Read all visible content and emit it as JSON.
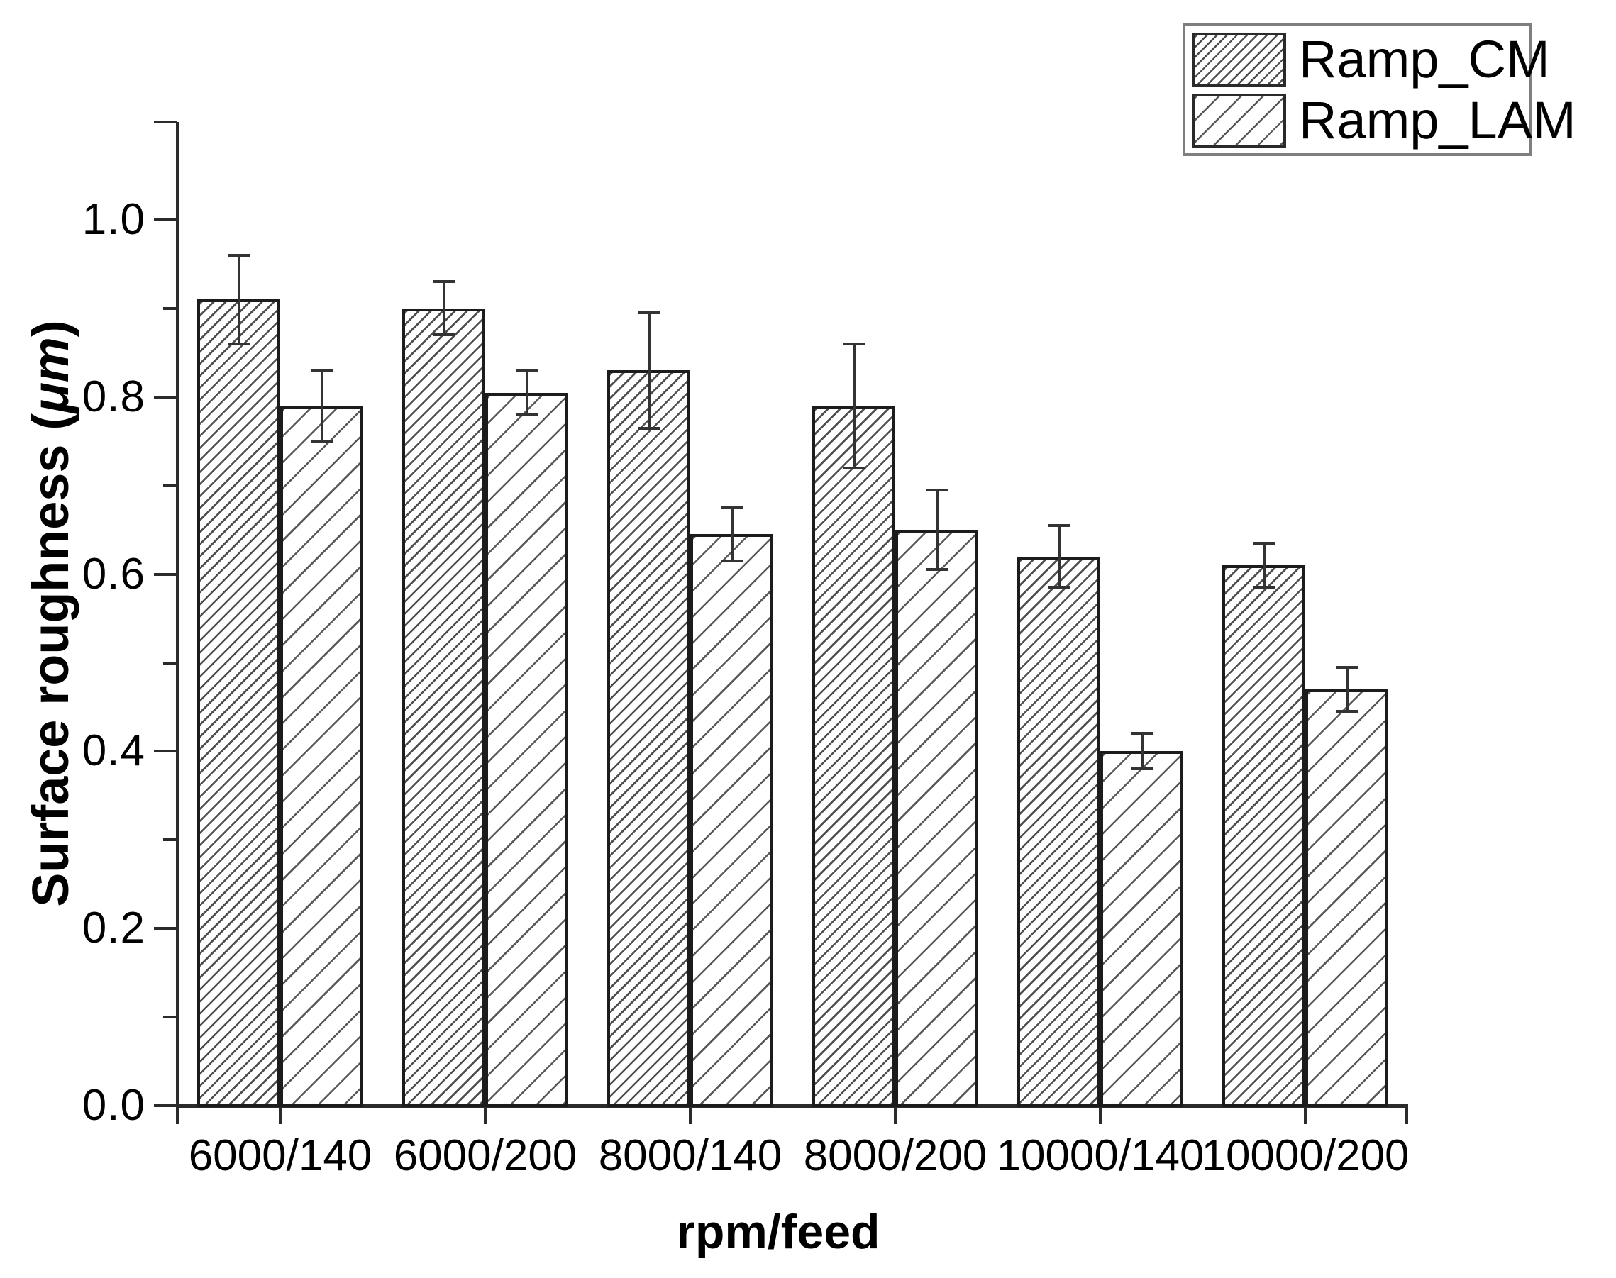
{
  "chart_data": {
    "type": "bar",
    "xlabel": "rpm/feed",
    "ylabel": "Surface roughness (μm)",
    "ylabel_parts": {
      "prefix": "Surface roughness (",
      "unit": "μm",
      "suffix": ")"
    },
    "categories": [
      "6000/140",
      "6000/200",
      "8000/140",
      "8000/200",
      "10000/140",
      "10000/200"
    ],
    "series": [
      {
        "name": "Ramp_CM",
        "hatch": "dense-diagonal",
        "values": [
          0.91,
          0.9,
          0.83,
          0.79,
          0.62,
          0.61
        ],
        "errors": [
          0.05,
          0.03,
          0.065,
          0.07,
          0.035,
          0.025
        ]
      },
      {
        "name": "Ramp_LAM",
        "hatch": "sparse-diagonal",
        "values": [
          0.79,
          0.805,
          0.645,
          0.65,
          0.4,
          0.47
        ],
        "errors": [
          0.04,
          0.025,
          0.03,
          0.045,
          0.02,
          0.025
        ]
      }
    ],
    "y_ticks": [
      0.0,
      0.2,
      0.4,
      0.6,
      0.8,
      1.0
    ],
    "y_tick_labels": [
      "0.0",
      "0.2",
      "0.4",
      "0.6",
      "0.8",
      "1.0"
    ],
    "y_minor_ticks": [
      0.1,
      0.3,
      0.5,
      0.7,
      0.9
    ],
    "ylim": [
      0,
      1.11
    ],
    "grid": false,
    "legend_position": "top-right",
    "colors": {
      "background": "#ffffff",
      "bar_fill": "#ffffff",
      "bar_edge": "#1c1c1c",
      "hatch_line": "#444444",
      "axis": "#2b2b2b",
      "text": "#000000",
      "legend_border": "#7f7f7f",
      "error_bar": "#333333"
    }
  }
}
